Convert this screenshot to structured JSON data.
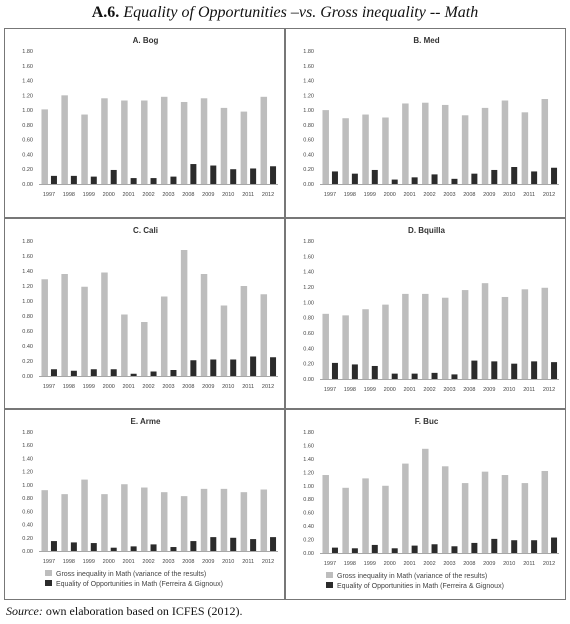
{
  "figure": {
    "label": "A.6.",
    "title": "Equality of Opportunities –vs. Gross inequality -- Math"
  },
  "source": {
    "prefix": "Source:",
    "text": " own elaboration based on ICFES (2012)."
  },
  "legend": {
    "gross": "Gross inequality in Math (variance of the results)",
    "eo": "Equality of Opportunities in Math (Ferreira & Gignoux)"
  },
  "colors": {
    "gross": "#bdbdbd",
    "eo": "#2b2b2b",
    "axis": "#8a8a8a",
    "border": "#777777"
  },
  "chart_data": [
    {
      "type": "bar",
      "title": "A. Bog",
      "categories": [
        "1997",
        "1998",
        "1999",
        "2000",
        "2001",
        "2002",
        "2003",
        "2008",
        "2009",
        "2010",
        "2011",
        "2012"
      ],
      "series": [
        {
          "key": "gross",
          "values": [
            1.01,
            1.2,
            0.94,
            1.16,
            1.13,
            1.13,
            1.18,
            1.11,
            1.16,
            1.03,
            0.98,
            1.18
          ]
        },
        {
          "key": "eo",
          "values": [
            0.11,
            0.11,
            0.1,
            0.19,
            0.08,
            0.08,
            0.1,
            0.27,
            0.25,
            0.2,
            0.21,
            0.24
          ]
        }
      ],
      "ylim": [
        0,
        1.8
      ],
      "yticks": [
        "0.00",
        "0.20",
        "0.40",
        "0.60",
        "0.80",
        "1.00",
        "1.20",
        "1.40",
        "1.60",
        "1.80"
      ]
    },
    {
      "type": "bar",
      "title": "B. Med",
      "categories": [
        "1997",
        "1998",
        "1999",
        "2000",
        "2001",
        "2002",
        "2003",
        "2008",
        "2009",
        "2010",
        "2011",
        "2012"
      ],
      "series": [
        {
          "key": "gross",
          "values": [
            1.0,
            0.89,
            0.94,
            0.9,
            1.09,
            1.1,
            1.07,
            0.93,
            1.03,
            1.13,
            0.97,
            1.15
          ]
        },
        {
          "key": "eo",
          "values": [
            0.17,
            0.14,
            0.19,
            0.06,
            0.09,
            0.13,
            0.07,
            0.14,
            0.19,
            0.23,
            0.17,
            0.22
          ]
        }
      ],
      "ylim": [
        0,
        1.8
      ],
      "yticks": [
        "0.00",
        "0.20",
        "0.40",
        "0.60",
        "0.80",
        "1.00",
        "1.20",
        "1.40",
        "1.60",
        "1.80"
      ]
    },
    {
      "type": "bar",
      "title": "C. Cali",
      "categories": [
        "1997",
        "1998",
        "1999",
        "2000",
        "2001",
        "2002",
        "2003",
        "2008",
        "2009",
        "2010",
        "2011",
        "2012"
      ],
      "series": [
        {
          "key": "gross",
          "values": [
            1.29,
            1.36,
            1.19,
            1.38,
            0.82,
            0.72,
            1.06,
            1.68,
            1.36,
            0.94,
            1.2,
            1.09
          ]
        },
        {
          "key": "eo",
          "values": [
            0.09,
            0.07,
            0.09,
            0.09,
            0.03,
            0.06,
            0.08,
            0.21,
            0.22,
            0.22,
            0.26,
            0.25
          ]
        }
      ],
      "ylim": [
        0,
        1.8
      ],
      "yticks": [
        "0.00",
        "0.20",
        "0.40",
        "0.60",
        "0.80",
        "1.00",
        "1.20",
        "1.40",
        "1.60",
        "1.80"
      ]
    },
    {
      "type": "bar",
      "title": "D. Bquilla",
      "categories": [
        "1997",
        "1998",
        "1999",
        "2000",
        "2001",
        "2002",
        "2003",
        "2008",
        "2009",
        "2010",
        "2011",
        "2012"
      ],
      "series": [
        {
          "key": "gross",
          "values": [
            0.85,
            0.83,
            0.91,
            0.97,
            1.11,
            1.11,
            1.06,
            1.16,
            1.25,
            1.07,
            1.17,
            1.19
          ]
        },
        {
          "key": "eo",
          "values": [
            0.21,
            0.19,
            0.17,
            0.07,
            0.07,
            0.08,
            0.06,
            0.24,
            0.23,
            0.2,
            0.23,
            0.22
          ]
        }
      ],
      "ylim": [
        0,
        1.8
      ],
      "yticks": [
        "0.00",
        "0.20",
        "0.40",
        "0.60",
        "0.80",
        "1.00",
        "1.20",
        "1.40",
        "1.60",
        "1.80"
      ]
    },
    {
      "type": "bar",
      "title": "E. Arme",
      "categories": [
        "1997",
        "1998",
        "1999",
        "2000",
        "2001",
        "2002",
        "2003",
        "2008",
        "2009",
        "2010",
        "2011",
        "2012"
      ],
      "series": [
        {
          "key": "gross",
          "values": [
            0.92,
            0.86,
            1.08,
            0.86,
            1.01,
            0.96,
            0.89,
            0.83,
            0.94,
            0.94,
            0.89,
            0.93
          ]
        },
        {
          "key": "eo",
          "values": [
            0.15,
            0.13,
            0.12,
            0.05,
            0.07,
            0.1,
            0.06,
            0.15,
            0.21,
            0.2,
            0.18,
            0.21
          ]
        }
      ],
      "ylim": [
        0,
        1.8
      ],
      "yticks": [
        "0.00",
        "0.20",
        "0.40",
        "0.60",
        "0.80",
        "1.00",
        "1.20",
        "1.40",
        "1.60",
        "1.80"
      ],
      "legend": true
    },
    {
      "type": "bar",
      "title": "F. Buc",
      "categories": [
        "1997",
        "1998",
        "1999",
        "2000",
        "2001",
        "2002",
        "2003",
        "2008",
        "2009",
        "2010",
        "2011",
        "2012"
      ],
      "series": [
        {
          "key": "gross",
          "values": [
            1.16,
            0.97,
            1.11,
            1.0,
            1.33,
            1.55,
            1.29,
            1.04,
            1.21,
            1.16,
            1.04,
            1.22
          ]
        },
        {
          "key": "eo",
          "values": [
            0.08,
            0.07,
            0.12,
            0.07,
            0.11,
            0.13,
            0.1,
            0.15,
            0.21,
            0.19,
            0.19,
            0.23
          ]
        }
      ],
      "ylim": [
        0,
        1.8
      ],
      "yticks": [
        "0.00",
        "0.20",
        "0.40",
        "0.60",
        "0.80",
        "1.00",
        "1.20",
        "1.40",
        "1.60",
        "1.80"
      ],
      "legend": true
    }
  ]
}
